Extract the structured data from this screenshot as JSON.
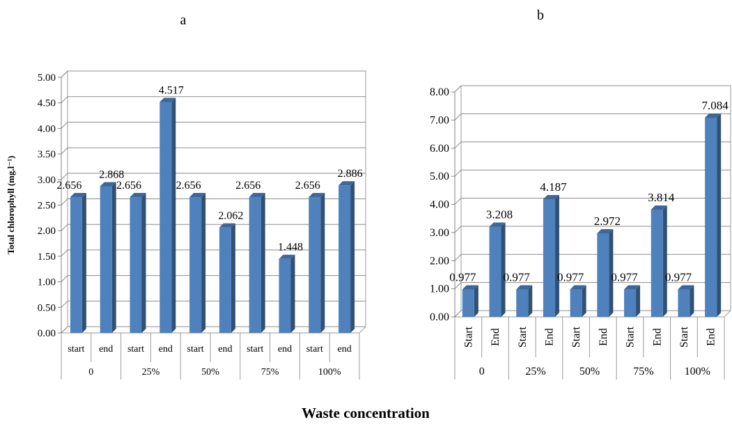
{
  "panel_labels": [
    "a",
    "b"
  ],
  "shared_xlabel": "Waste concentration",
  "chart_data": [
    {
      "type": "bar",
      "panel": "a",
      "ylabel": "Total chlorophyll (mg.l⁻¹)",
      "ylim": [
        0,
        5
      ],
      "yticks": [
        "0.00",
        "0.50",
        "1.00",
        "1.50",
        "2.00",
        "2.50",
        "3.00",
        "3.50",
        "4.00",
        "4.50",
        "5.00"
      ],
      "groups": [
        "0",
        "25%",
        "50%",
        "75%",
        "100%"
      ],
      "subcategories": [
        "start",
        "end"
      ],
      "values": [
        [
          2.656,
          2.868
        ],
        [
          2.656,
          4.517
        ],
        [
          2.656,
          2.062
        ],
        [
          2.656,
          1.448
        ],
        [
          2.656,
          2.886
        ]
      ],
      "data_labels": [
        [
          "2.656",
          "2.868"
        ],
        [
          "2.656",
          "4.517"
        ],
        [
          "2.656",
          "2.062"
        ],
        [
          "2.656",
          "1.448"
        ],
        [
          "2.656",
          "2.886"
        ]
      ],
      "grid": true,
      "bar_color": "#4F81BD"
    },
    {
      "type": "bar",
      "panel": "b",
      "ylim": [
        0,
        8
      ],
      "yticks": [
        "0.00",
        "1.00",
        "2.00",
        "3.00",
        "4.00",
        "5.00",
        "6.00",
        "7.00",
        "8.00"
      ],
      "groups": [
        "0",
        "25%",
        "50%",
        "75%",
        "100%"
      ],
      "subcategories": [
        "Start",
        "End"
      ],
      "values": [
        [
          0.977,
          3.208
        ],
        [
          0.977,
          4.187
        ],
        [
          0.977,
          2.972
        ],
        [
          0.977,
          3.814
        ],
        [
          0.977,
          7.084
        ]
      ],
      "data_labels": [
        [
          "0.977",
          "3.208"
        ],
        [
          "0.977",
          "4.187"
        ],
        [
          "0.977",
          "2.972"
        ],
        [
          "0.977",
          "3.814"
        ],
        [
          "0.977",
          "7.084"
        ]
      ],
      "grid": true,
      "bar_color": "#4F81BD"
    }
  ]
}
